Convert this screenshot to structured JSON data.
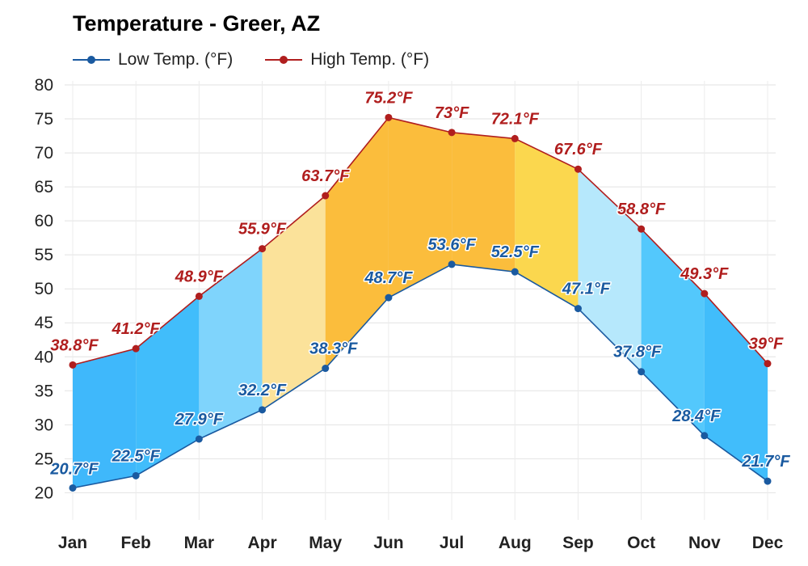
{
  "chart_data": {
    "type": "area",
    "title": "Temperature - Greer, AZ",
    "categories": [
      "Jan",
      "Feb",
      "Mar",
      "Apr",
      "May",
      "Jun",
      "Jul",
      "Aug",
      "Sep",
      "Oct",
      "Nov",
      "Dec"
    ],
    "series": [
      {
        "name": "Low Temp. (°F)",
        "color": "#1a5aa0",
        "values": [
          20.7,
          22.5,
          27.9,
          32.2,
          38.3,
          48.7,
          53.6,
          52.5,
          47.1,
          37.8,
          28.4,
          21.7
        ],
        "labels": [
          "20.7°F",
          "22.5°F",
          "27.9°F",
          "32.2°F",
          "38.3°F",
          "48.7°F",
          "53.6°F",
          "52.5°F",
          "47.1°F",
          "37.8°F",
          "28.4°F",
          "21.7°F"
        ]
      },
      {
        "name": "High Temp. (°F)",
        "color": "#b01e1e",
        "values": [
          38.8,
          41.2,
          48.9,
          55.9,
          63.7,
          75.2,
          73,
          72.1,
          67.6,
          58.8,
          49.3,
          39
        ],
        "labels": [
          "38.8°F",
          "41.2°F",
          "48.9°F",
          "55.9°F",
          "63.7°F",
          "75.2°F",
          "73°F",
          "72.1°F",
          "67.6°F",
          "58.8°F",
          "49.3°F",
          "39°F"
        ]
      }
    ],
    "band_colors": [
      "#3fb8fb",
      "#41bdfb",
      "#7fd4fc",
      "#fbe29a",
      "#fbbd3c",
      "#fbbd3c",
      "#fbbd3c",
      "#fbd74e",
      "#b6e8fc",
      "#53c8fc",
      "#41bdfb",
      "#3fb8fb"
    ],
    "yticks": [
      20,
      25,
      30,
      35,
      40,
      45,
      50,
      55,
      60,
      65,
      70,
      75,
      80
    ],
    "ylim": [
      16,
      80
    ],
    "xlabel": "",
    "ylabel": "",
    "grid": true,
    "legend": "top-left"
  }
}
